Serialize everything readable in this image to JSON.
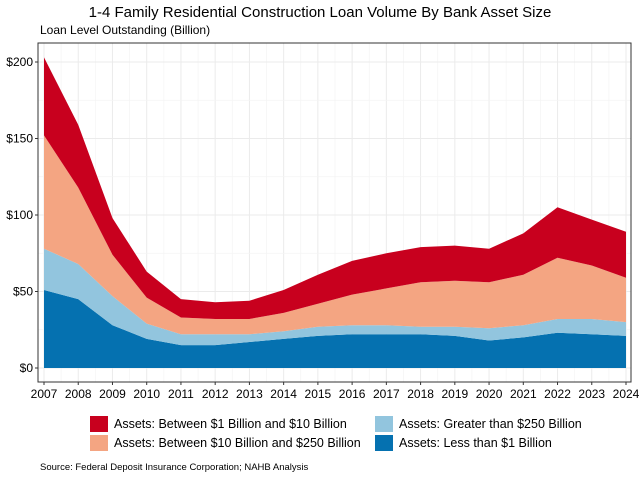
{
  "header": {
    "title": "1-4 Family Residential Construction Loan Volume By Bank Asset Size",
    "subtitle": "Loan Level Outstanding (Billion)"
  },
  "footer": {
    "source": "Source: Federal Deposit Insurance Corporation; NAHB Analysis"
  },
  "legend": [
    {
      "label": "Assets: Between $1 Billion and $10 Billion",
      "color": "#c8001e"
    },
    {
      "label": "Assets: Greater than $250 Billion",
      "color": "#92c5de"
    },
    {
      "label": "Assets: Between $10 Billion and $250 Billion",
      "color": "#f4a582"
    },
    {
      "label": "Assets: Less than $1 Billion",
      "color": "#0571b0"
    }
  ],
  "chart_data": {
    "type": "area",
    "stacked": true,
    "title": "1-4 Family Residential Construction Loan Volume By Bank Asset Size",
    "ylabel": "Loan Level Outstanding (Billion)",
    "xlabel": "",
    "x": [
      2007,
      2008,
      2009,
      2010,
      2011,
      2012,
      2013,
      2014,
      2015,
      2016,
      2017,
      2018,
      2019,
      2020,
      2021,
      2022,
      2023,
      2024
    ],
    "xticks": [
      "2007",
      "2008",
      "2009",
      "2010",
      "2011",
      "2012",
      "2013",
      "2014",
      "2015",
      "2016",
      "2017",
      "2018",
      "2019",
      "2020",
      "2021",
      "2022",
      "2023",
      "2024"
    ],
    "ylim": [
      0,
      210
    ],
    "yticks": [
      0,
      50,
      100,
      150,
      200
    ],
    "ytick_labels": [
      "$0",
      "$50",
      "$100",
      "$150",
      "$200"
    ],
    "grid": true,
    "legend_position": "bottom",
    "series": [
      {
        "name": "Assets: Less than $1 Billion",
        "color": "#0571b0",
        "values": [
          51,
          45,
          28,
          19,
          15,
          15,
          17,
          19,
          21,
          22,
          22,
          22,
          21,
          18,
          20,
          23,
          22,
          21
        ]
      },
      {
        "name": "Assets: Greater than $250 Billion",
        "color": "#92c5de",
        "values": [
          27,
          23,
          19,
          10,
          7,
          7,
          5,
          5,
          6,
          6,
          6,
          5,
          6,
          8,
          8,
          9,
          10,
          9
        ]
      },
      {
        "name": "Assets: Between $10 Billion and $250 Billion",
        "color": "#f4a582",
        "values": [
          74,
          50,
          27,
          17,
          11,
          10,
          10,
          12,
          15,
          20,
          24,
          29,
          30,
          30,
          33,
          40,
          35,
          29
        ]
      },
      {
        "name": "Assets: Between $1 Billion and $10 Billion",
        "color": "#c8001e",
        "values": [
          51,
          41,
          24,
          17,
          12,
          11,
          12,
          15,
          19,
          22,
          23,
          23,
          23,
          22,
          27,
          33,
          30,
          30
        ]
      }
    ]
  }
}
